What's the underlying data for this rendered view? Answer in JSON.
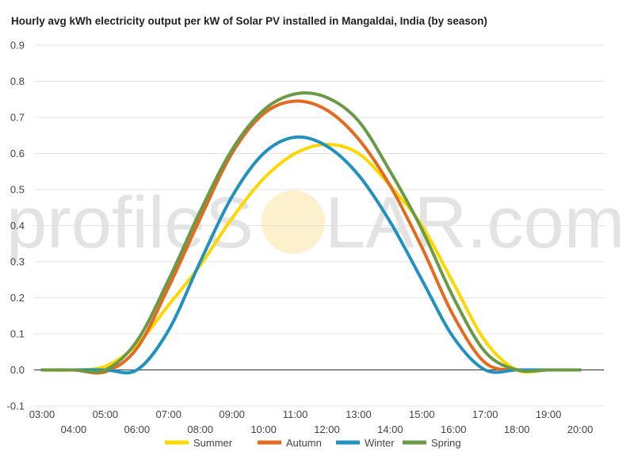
{
  "title": "Hourly avg kWh electricity output per kW of Solar PV installed in Mangaldai, India (by season)",
  "watermark": {
    "left_text": "profileS",
    "right_text": "LAR.com",
    "sun_color": "#f5d76e"
  },
  "chart_data": {
    "type": "line",
    "title": "Hourly avg kWh electricity output per kW of Solar PV installed in Mangaldai, India (by season)",
    "xlabel": "",
    "ylabel": "",
    "ylim": [
      -0.1,
      0.9
    ],
    "yticks": [
      -0.1,
      0.0,
      0.1,
      0.2,
      0.3,
      0.4,
      0.5,
      0.6,
      0.7,
      0.8,
      0.9
    ],
    "ytick_labels": [
      "-0.1",
      "0.0",
      "0.1",
      "0.2",
      "0.3",
      "0.4",
      "0.5",
      "0.6",
      "0.7",
      "0.8",
      "0.9"
    ],
    "x_hours": [
      3,
      4,
      5,
      6,
      7,
      8,
      9,
      10,
      11,
      12,
      13,
      14,
      15,
      16,
      17,
      18,
      19,
      20
    ],
    "x_labels": [
      "03:00",
      "04:00",
      "05:00",
      "06:00",
      "07:00",
      "08:00",
      "09:00",
      "10:00",
      "11:00",
      "12:00",
      "13:00",
      "14:00",
      "15:00",
      "16:00",
      "17:00",
      "18:00",
      "19:00",
      "20:00"
    ],
    "grid": true,
    "legend_position": "bottom",
    "series": [
      {
        "name": "Summer",
        "color": "#ffd700",
        "values": [
          0.0,
          0.0,
          0.01,
          0.07,
          0.18,
          0.29,
          0.42,
          0.53,
          0.6,
          0.625,
          0.6,
          0.51,
          0.4,
          0.24,
          0.08,
          0.0,
          0.0,
          0.0
        ]
      },
      {
        "name": "Autumn",
        "color": "#e46a1f",
        "values": [
          0.0,
          0.0,
          -0.005,
          0.06,
          0.23,
          0.42,
          0.6,
          0.71,
          0.745,
          0.72,
          0.64,
          0.51,
          0.34,
          0.15,
          0.02,
          0.0,
          0.0,
          0.0
        ]
      },
      {
        "name": "Winter",
        "color": "#2192c0",
        "values": [
          0.0,
          0.0,
          0.0,
          0.0,
          0.11,
          0.3,
          0.48,
          0.6,
          0.645,
          0.62,
          0.54,
          0.41,
          0.25,
          0.09,
          0.0,
          0.0,
          0.0,
          0.0
        ]
      },
      {
        "name": "Spring",
        "color": "#6b9a47",
        "values": [
          0.0,
          0.0,
          0.0,
          0.08,
          0.25,
          0.44,
          0.61,
          0.72,
          0.765,
          0.755,
          0.69,
          0.55,
          0.39,
          0.2,
          0.05,
          0.0,
          0.0,
          0.0
        ]
      }
    ]
  }
}
